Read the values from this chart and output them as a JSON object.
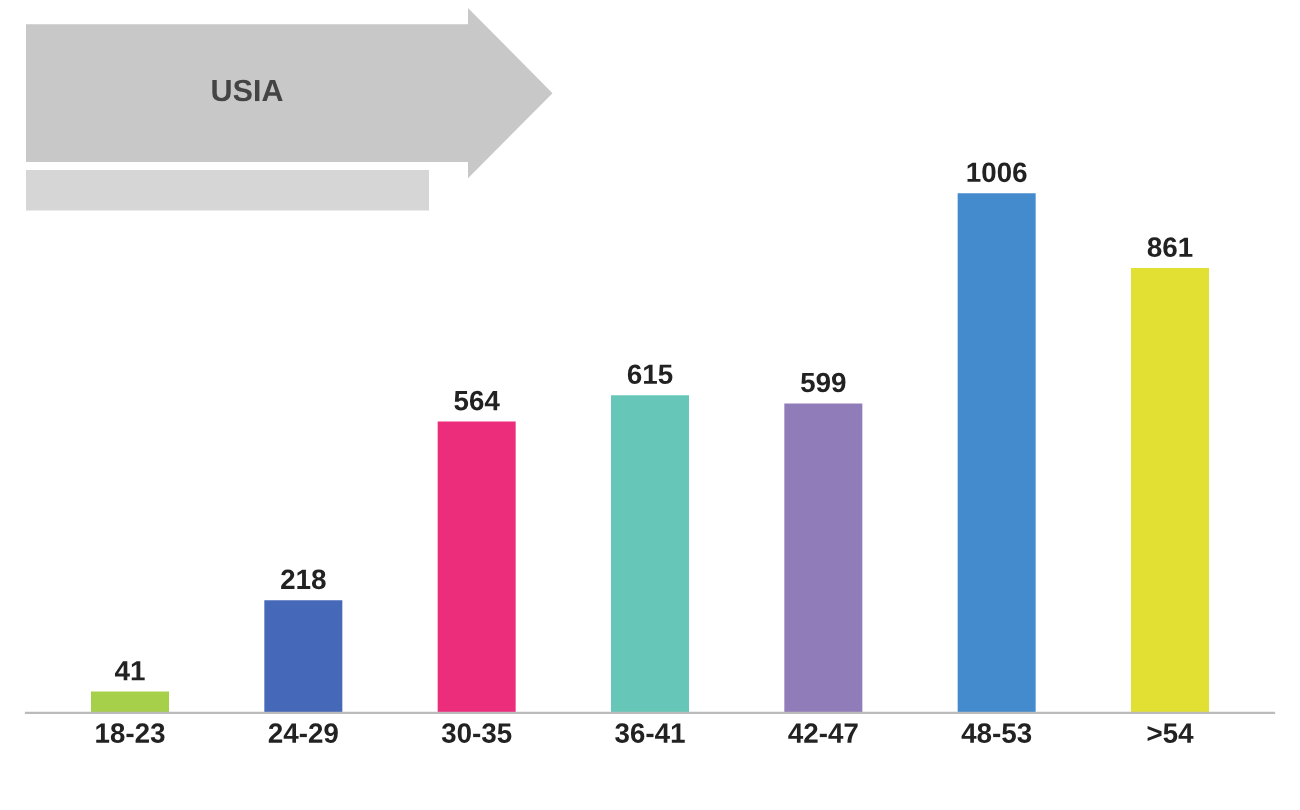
{
  "chart_data": {
    "type": "bar",
    "title": "USIA",
    "categories": [
      "18-23",
      "24-29",
      "30-35",
      "36-41",
      "42-47",
      "48-53",
      ">54"
    ],
    "values": [
      41,
      218,
      564,
      615,
      599,
      1006,
      861
    ],
    "colors": [
      "#a6cf4a",
      "#4668b8",
      "#ec2d7c",
      "#66c7b8",
      "#917cba",
      "#438bcc",
      "#e3e034"
    ],
    "data_labels": true,
    "grid": false,
    "legend": false
  }
}
